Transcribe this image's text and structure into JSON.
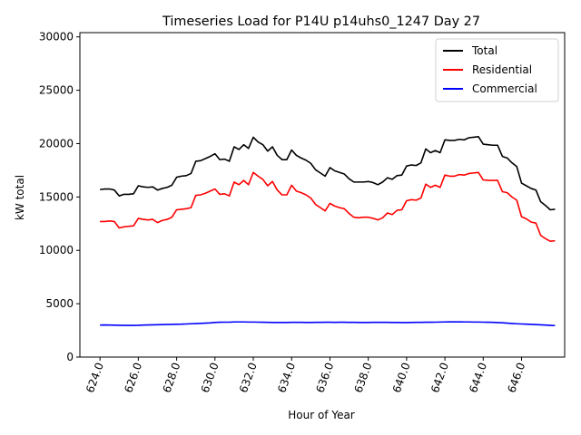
{
  "chart_data": {
    "type": "line",
    "title": "Timeseries Load for P14U p14uhs0_1247  Day 27",
    "xlabel": "Hour of Year",
    "ylabel": "kW total",
    "xlim": [
      622.95,
      648.25
    ],
    "ylim": [
      0,
      30400
    ],
    "xticks": [
      624,
      626,
      628,
      630,
      632,
      634,
      636,
      638,
      640,
      642,
      644,
      646
    ],
    "xtick_labels": [
      "624.0",
      "626.0",
      "628.0",
      "630.0",
      "632.0",
      "634.0",
      "636.0",
      "638.0",
      "640.0",
      "642.0",
      "644.0",
      "646.0"
    ],
    "yticks": [
      0,
      5000,
      10000,
      15000,
      20000,
      25000,
      30000
    ],
    "ytick_labels": [
      "0",
      "5000",
      "10000",
      "15000",
      "20000",
      "25000",
      "30000"
    ],
    "legend_position": "top-right",
    "x_start": 624,
    "x_step": 0.25,
    "series": [
      {
        "name": "Total",
        "color": "#000000",
        "values": [
          15700,
          15750,
          15750,
          15650,
          15100,
          15250,
          15250,
          15300,
          16050,
          15950,
          15900,
          15950,
          15650,
          15800,
          15900,
          16100,
          16850,
          16950,
          17000,
          17200,
          18350,
          18400,
          18600,
          18800,
          19050,
          18500,
          18550,
          18350,
          19700,
          19450,
          19900,
          19550,
          20600,
          20150,
          19900,
          19300,
          19700,
          18900,
          18500,
          18500,
          19400,
          18900,
          18650,
          18450,
          18150,
          17550,
          17250,
          16950,
          17750,
          17450,
          17300,
          17150,
          16700,
          16400,
          16400,
          16400,
          16450,
          16350,
          16150,
          16400,
          16800,
          16650,
          17000,
          17050,
          17900,
          18000,
          17950,
          18200,
          19500,
          19150,
          19350,
          19150,
          20350,
          20300,
          20300,
          20400,
          20350,
          20550,
          20600,
          20650,
          19950,
          19900,
          19850,
          19850,
          18800,
          18650,
          18200,
          17850,
          16300,
          16050,
          15800,
          15650,
          14550,
          14200,
          13800,
          13850
        ]
      },
      {
        "name": "Residential",
        "color": "#ff0000",
        "values": [
          12700,
          12700,
          12750,
          12700,
          12100,
          12200,
          12250,
          12300,
          13000,
          12900,
          12850,
          12900,
          12600,
          12800,
          12900,
          13100,
          13800,
          13850,
          13900,
          14000,
          15150,
          15200,
          15350,
          15550,
          15750,
          15250,
          15300,
          15100,
          16400,
          16150,
          16550,
          16150,
          17300,
          16950,
          16650,
          16050,
          16450,
          15650,
          15200,
          15200,
          16100,
          15550,
          15400,
          15200,
          14900,
          14300,
          14000,
          13700,
          14400,
          14150,
          14000,
          13900,
          13450,
          13100,
          13050,
          13100,
          13100,
          13000,
          12850,
          13050,
          13500,
          13350,
          13750,
          13800,
          14650,
          14750,
          14700,
          14900,
          16200,
          15900,
          16100,
          15900,
          17050,
          16950,
          16950,
          17100,
          17050,
          17200,
          17250,
          17300,
          16600,
          16550,
          16550,
          16550,
          15500,
          15400,
          15000,
          14700,
          13150,
          12950,
          12650,
          12550,
          11400,
          11100,
          10850,
          10900
        ]
      },
      {
        "name": "Commercial",
        "color": "#0000ff",
        "values": [
          3000,
          3010,
          3000,
          2990,
          2980,
          2970,
          2970,
          2970,
          2980,
          3000,
          3010,
          3020,
          3030,
          3040,
          3050,
          3060,
          3070,
          3080,
          3100,
          3120,
          3140,
          3160,
          3180,
          3200,
          3240,
          3260,
          3270,
          3270,
          3290,
          3290,
          3290,
          3280,
          3280,
          3270,
          3260,
          3250,
          3240,
          3240,
          3240,
          3240,
          3250,
          3250,
          3250,
          3240,
          3240,
          3250,
          3250,
          3260,
          3260,
          3250,
          3260,
          3260,
          3250,
          3250,
          3240,
          3240,
          3240,
          3250,
          3250,
          3250,
          3250,
          3240,
          3240,
          3230,
          3230,
          3240,
          3250,
          3250,
          3260,
          3260,
          3270,
          3280,
          3290,
          3300,
          3300,
          3300,
          3290,
          3290,
          3280,
          3280,
          3270,
          3260,
          3250,
          3230,
          3210,
          3180,
          3150,
          3120,
          3100,
          3080,
          3060,
          3040,
          3020,
          3000,
          2970,
          2950
        ]
      }
    ]
  }
}
